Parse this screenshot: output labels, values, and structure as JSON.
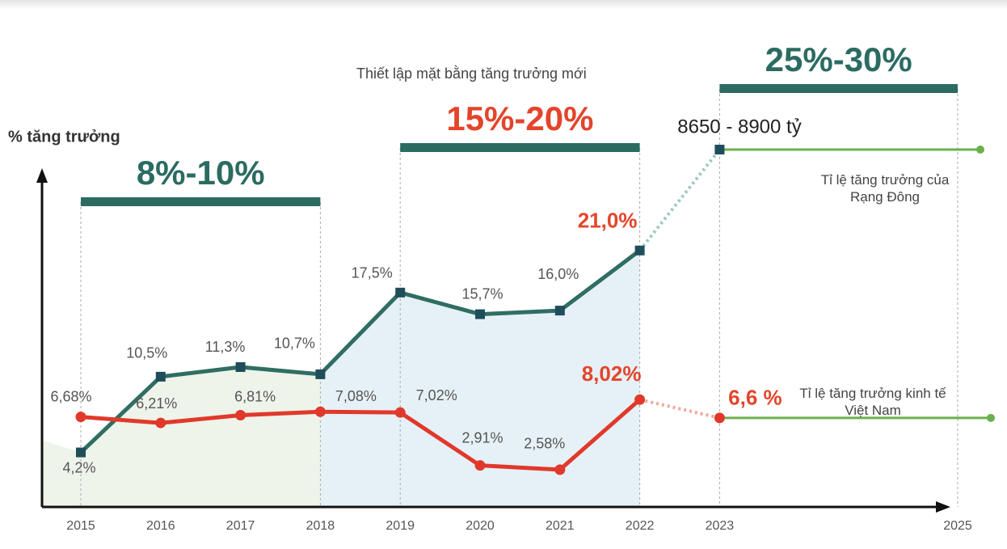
{
  "chart_data": {
    "type": "line",
    "y_label": "% tăng trưởng",
    "categories": [
      "2015",
      "2016",
      "2017",
      "2018",
      "2019",
      "2020",
      "2021",
      "2022",
      "2023",
      "2025"
    ],
    "ylim": [
      0,
      30
    ],
    "y2lim": [
      0,
      28
    ],
    "series": [
      {
        "name": "Tỉ lệ tăng trưởng của Rạng Đông",
        "color": "#2f6e62",
        "values": [
          4.2,
          10.5,
          11.3,
          10.7,
          17.5,
          15.7,
          16.0,
          21.0,
          null,
          null
        ],
        "value_labels": [
          "4,2%",
          "10,5%",
          "11,3%",
          "10,7%",
          "17,5%",
          "15,7%",
          "16,0%",
          "21,0%",
          null,
          null
        ]
      },
      {
        "name": "Tỉ lệ tăng trưởng kinh tế Việt Nam",
        "color": "#e0392b",
        "axis": "y2",
        "values": [
          6.68,
          6.21,
          6.81,
          7.08,
          7.02,
          2.91,
          2.58,
          8.02,
          6.6,
          null
        ],
        "value_labels": [
          "6,68%",
          "6,21%",
          "6,81%",
          "7,08%",
          "7,02%",
          "2,91%",
          "2,58%",
          "8,02%",
          "6,6 %",
          null
        ]
      }
    ],
    "bands": [
      {
        "label": "8%-10%",
        "color": "#2b6b62"
      },
      {
        "label": "15%-20%",
        "color": "#e3452b",
        "note": "Thiết lập mặt bằng tăng trưởng mới"
      },
      {
        "label": "25%-30%",
        "color": "#2b6b62"
      }
    ],
    "band_bar_color": "#2b6b62",
    "target_label": "8650 - 8900 tỷ",
    "target_line_color": "#6ab04c"
  }
}
